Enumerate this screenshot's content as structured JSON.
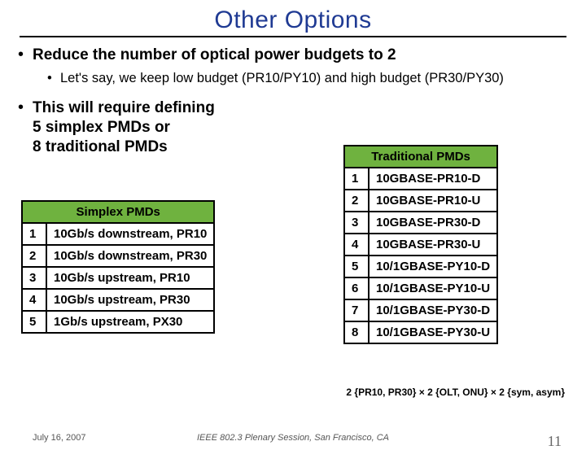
{
  "title": "Other Options",
  "bullets": {
    "b1": "Reduce the number of optical power budgets to 2",
    "b1a": "Let's say, we keep low budget (PR10/PY10) and high budget (PR30/PY30)",
    "b2_l1": "This will require defining",
    "b2_l2": "5 simplex PMDs or",
    "b2_l3": "8 traditional PMDs"
  },
  "simplex": {
    "header": "Simplex PMDs",
    "rows": [
      {
        "n": "1",
        "t": "10Gb/s downstream, PR10"
      },
      {
        "n": "2",
        "t": "10Gb/s downstream, PR30"
      },
      {
        "n": "3",
        "t": "10Gb/s upstream, PR10"
      },
      {
        "n": "4",
        "t": "10Gb/s upstream, PR30"
      },
      {
        "n": "5",
        "t": "1Gb/s upstream, PX30"
      }
    ]
  },
  "traditional": {
    "header": "Traditional PMDs",
    "rows": [
      {
        "n": "1",
        "t": "10GBASE-PR10-D"
      },
      {
        "n": "2",
        "t": "10GBASE-PR10-U"
      },
      {
        "n": "3",
        "t": "10GBASE-PR30-D"
      },
      {
        "n": "4",
        "t": "10GBASE-PR30-U"
      },
      {
        "n": "5",
        "t": "10/1GBASE-PY10-D"
      },
      {
        "n": "6",
        "t": "10/1GBASE-PY10-U"
      },
      {
        "n": "7",
        "t": "10/1GBASE-PY30-D"
      },
      {
        "n": "8",
        "t": "10/1GBASE-PY30-U"
      }
    ]
  },
  "formula": "2 {PR10, PR30} × 2 {OLT, ONU} × 2 {sym, asym}",
  "footer": {
    "date": "July 16, 2007",
    "mid": "IEEE 802.3 Plenary Session, San Francisco, CA",
    "page": "11"
  },
  "colors": {
    "title": "#1f3a93",
    "table_header_bg": "#6fb23f",
    "border": "#000000"
  }
}
